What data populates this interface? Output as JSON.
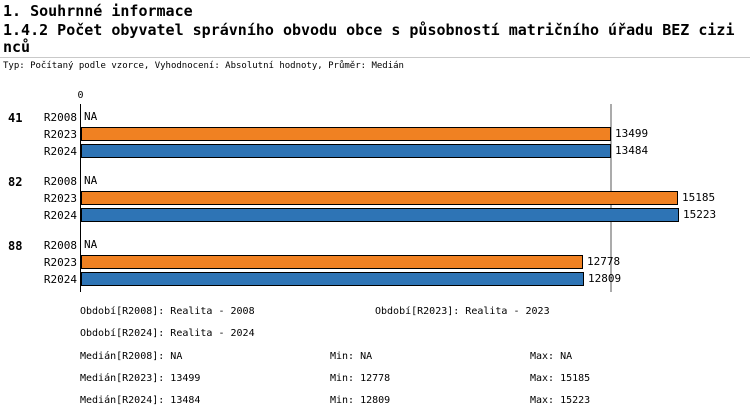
{
  "header": {
    "section_title": "1. Souhrnné informace",
    "chart_title": "1.4.2 Počet obyvatel správního obvodu obce s působností matričního úřadu BEZ cizinců",
    "meta": "Typ: Počítaný podle vzorce, Vyhodnocení: Absolutní hodnoty, Průměr: Medián"
  },
  "chart_data": {
    "type": "bar",
    "orientation": "horizontal",
    "title": "1.4.2 Počet obyvatel správního obvodu obce s působností matričního úřadu BEZ cizinců",
    "xlabel": "",
    "ylabel": "",
    "axis_zero_label": "0",
    "xlim": [
      0,
      16800
    ],
    "categories": [
      "41",
      "82",
      "88"
    ],
    "series": [
      {
        "name": "R2008",
        "values": [
          null,
          null,
          null
        ],
        "color": null
      },
      {
        "name": "R2023",
        "values": [
          13499,
          15185,
          12778
        ],
        "color": "#F08122"
      },
      {
        "name": "R2024",
        "values": [
          13484,
          15223,
          12809
        ],
        "color": "#2E74B5"
      }
    ],
    "na_label": "NA",
    "median_lines": {
      "R2023": 13499,
      "R2024": 13484
    },
    "median_line_color": "#ABABAB",
    "bar_border_color": "#000000",
    "grid": false,
    "legend_position": "bottom-text"
  },
  "footer": {
    "period_r2008": "Období[R2008]: Realita - 2008",
    "period_r2023": "Období[R2023]: Realita - 2023",
    "period_r2024": "Období[R2024]: Realita - 2024",
    "stats": [
      {
        "label": "Medián[R2008]: NA",
        "min": "Min: NA",
        "max": "Max: NA"
      },
      {
        "label": "Medián[R2023]: 13499",
        "min": "Min: 12778",
        "max": "Max: 15185"
      },
      {
        "label": "Medián[R2024]: 13484",
        "min": "Min: 12809",
        "max": "Max: 15223"
      }
    ]
  }
}
